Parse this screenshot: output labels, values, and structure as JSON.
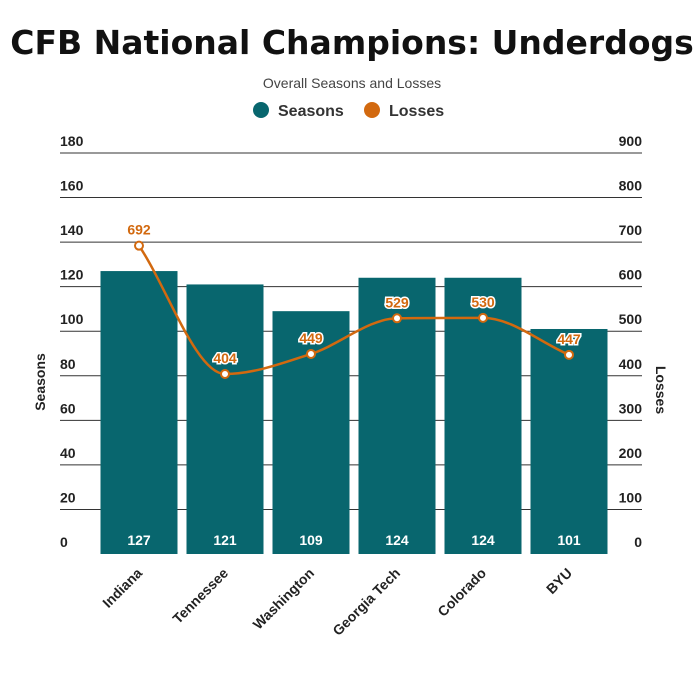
{
  "chart_data": {
    "type": "bar",
    "title": "CFB National Champions: Underdogs",
    "subtitle": "Overall Seasons and Losses",
    "categories": [
      "Indiana",
      "Tennessee",
      "Washington",
      "Georgia Tech",
      "Colorado",
      "BYU"
    ],
    "series": [
      {
        "name": "Seasons",
        "type": "bar",
        "axis": "left",
        "color": "#08666e",
        "values": [
          127,
          121,
          109,
          124,
          124,
          101
        ]
      },
      {
        "name": "Losses",
        "type": "line",
        "axis": "right",
        "color": "#d2690f",
        "values": [
          692,
          404,
          449,
          529,
          530,
          447
        ]
      }
    ],
    "ylabel": "Seasons",
    "y2label": "Losses",
    "ylim": [
      0,
      180
    ],
    "y2lim": [
      0,
      900
    ],
    "yticks": [
      "0",
      "20",
      "40",
      "60",
      "80",
      "100",
      "120",
      "140",
      "160",
      "180"
    ],
    "y2ticks": [
      "0",
      "100",
      "200",
      "300",
      "400",
      "500",
      "600",
      "700",
      "800",
      "900"
    ],
    "grid": true,
    "legend": "top-center"
  }
}
